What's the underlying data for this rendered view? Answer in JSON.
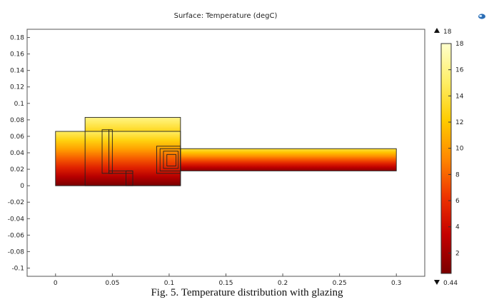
{
  "chart_data": {
    "type": "heatmap",
    "title": "Surface: Temperature (degC)",
    "xlim": [
      -0.025,
      0.325
    ],
    "ylim": [
      -0.11,
      0.19
    ],
    "x_ticks": [
      0,
      0.05,
      0.1,
      0.15,
      0.2,
      0.25,
      0.3
    ],
    "x_tick_labels": [
      "0",
      "0.05",
      "0.1",
      "0.15",
      "0.2",
      "0.25",
      "0.3"
    ],
    "y_ticks": [
      0.18,
      0.16,
      0.14,
      0.12,
      0.1,
      0.08,
      0.06,
      0.04,
      0.02,
      0,
      -0.02,
      -0.04,
      -0.06,
      -0.08,
      -0.1
    ],
    "y_tick_labels": [
      "0.18",
      "0.16",
      "0.14",
      "0.12",
      "0.1",
      "0.08",
      "0.06",
      "0.04",
      "0.02",
      "0",
      "-0.02",
      "-0.04",
      "-0.06",
      "-0.08",
      "-0.1"
    ],
    "colorbar": {
      "min": 0.44,
      "max": 18,
      "max_label": "18",
      "min_label": "0.44",
      "ticks": [
        18,
        16,
        14,
        12,
        10,
        8,
        6,
        4,
        2
      ],
      "tick_labels": [
        "18",
        "16",
        "14",
        "12",
        "10",
        "8",
        "6",
        "4",
        "2"
      ],
      "colors": [
        "#7a0000",
        "#c40000",
        "#ee3300",
        "#ff8800",
        "#ffcc00",
        "#ffee66",
        "#ffffcc"
      ]
    },
    "domains": [
      {
        "x0": 0,
        "x1": 0.11,
        "y0": 0,
        "y1": 0.066,
        "t_low": 0.44,
        "t_high": 15
      },
      {
        "x0": 0.026,
        "x1": 0.11,
        "y0": 0.066,
        "y1": 0.083,
        "t_low": 13,
        "t_high": 16
      },
      {
        "x0": 0.11,
        "x1": 0.3,
        "y0": 0.018,
        "y1": 0.045,
        "t_low": 1,
        "t_high": 14
      }
    ],
    "outlines": [
      {
        "x0": 0,
        "x1": 0.11,
        "y0": 0,
        "y1": 0.066
      },
      {
        "x0": 0.026,
        "x1": 0.11,
        "y0": 0,
        "y1": 0.083
      },
      {
        "x0": 0.041,
        "x1": 0.047,
        "y0": 0.015,
        "y1": 0.068
      },
      {
        "x0": 0.047,
        "x1": 0.05,
        "y0": 0.015,
        "y1": 0.068
      },
      {
        "x0": 0.047,
        "x1": 0.068,
        "y0": 0.015,
        "y1": 0.018
      },
      {
        "x0": 0.062,
        "x1": 0.068,
        "y0": 0,
        "y1": 0.018
      },
      {
        "x0": 0.089,
        "x1": 0.11,
        "y0": 0.015,
        "y1": 0.048
      },
      {
        "x0": 0.092,
        "x1": 0.11,
        "y0": 0.018,
        "y1": 0.045
      },
      {
        "x0": 0.095,
        "x1": 0.108,
        "y0": 0.021,
        "y1": 0.042
      },
      {
        "x0": 0.098,
        "x1": 0.106,
        "y0": 0.024,
        "y1": 0.038
      },
      {
        "x0": 0.11,
        "x1": 0.3,
        "y0": 0.018,
        "y1": 0.045
      }
    ]
  },
  "caption": "Fig. 5. Temperature distribution with glazing"
}
